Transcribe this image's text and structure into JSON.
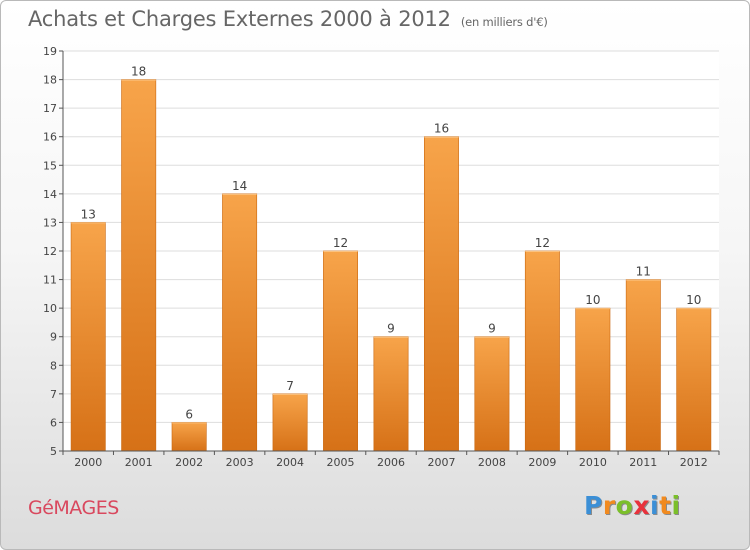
{
  "title": "Achats et Charges Externes 2000 à 2012",
  "subtitle": "(en milliers d'€)",
  "place_name": "GéMAGES",
  "brand": {
    "letters": [
      "P",
      "r",
      "o",
      "x",
      "i",
      "t",
      "i"
    ],
    "colors": [
      "#3b8fd6",
      "#f18a1f",
      "#7bbf2a",
      "#e8323c",
      "#3b8fd6",
      "#f18a1f",
      "#7bbf2a"
    ]
  },
  "colors": {
    "bar": "#f0902e",
    "bar_light": "#f7a44a",
    "bar_dark": "#d67117",
    "label": "#444444"
  },
  "chart_data": {
    "type": "bar",
    "title": "Achats et Charges Externes 2000 à 2012",
    "subtitle": "(en milliers d'€)",
    "categories": [
      "2000",
      "2001",
      "2002",
      "2003",
      "2004",
      "2005",
      "2006",
      "2007",
      "2008",
      "2009",
      "2010",
      "2011",
      "2012"
    ],
    "values": [
      13,
      18,
      6,
      14,
      7,
      12,
      9,
      16,
      9,
      12,
      10,
      11,
      10
    ],
    "ylim": [
      5,
      19
    ],
    "yticks": [
      5,
      6,
      7,
      8,
      9,
      10,
      11,
      12,
      13,
      14,
      15,
      16,
      17,
      18,
      19
    ],
    "grid": true
  }
}
